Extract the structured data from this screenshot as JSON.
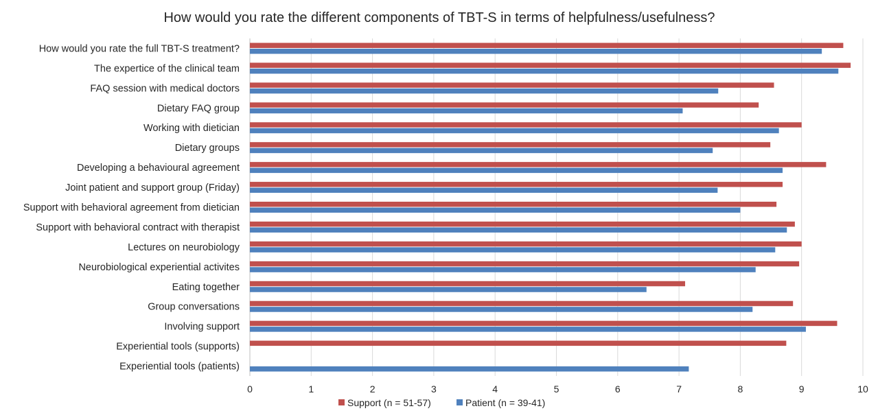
{
  "chart_data": {
    "type": "bar",
    "orientation": "horizontal",
    "title": "How would you rate the different components of TBT-S in terms of helpfulness/usefulness?",
    "xlabel": "",
    "ylabel": "",
    "xlim": [
      0,
      10
    ],
    "x_ticks": [
      0,
      1,
      2,
      3,
      4,
      5,
      6,
      7,
      8,
      9,
      10
    ],
    "grid": true,
    "legend_position": "bottom",
    "categories": [
      "How would you rate the full TBT-S treatment?",
      "The expertice of the clinical team",
      "FAQ session with medical doctors",
      "Dietary FAQ group",
      "Working with dietician",
      "Dietary groups",
      "Developing a behavioural agreement",
      "Joint patient and support group (Friday)",
      "Support with behavioral agreement from dietician",
      "Support with behavioral contract with therapist",
      "Lectures on neurobiology",
      "Neurobiological experiential activites",
      "Eating together",
      "Group conversations",
      "Involving support",
      "Experiential tools (supports)",
      "Experiential tools (patients)"
    ],
    "series": [
      {
        "name": "Support (n = 51-57)",
        "color": "#c0504d",
        "values": [
          9.68,
          9.8,
          8.55,
          8.3,
          9.0,
          8.49,
          9.4,
          8.69,
          8.59,
          8.89,
          9.0,
          8.96,
          7.1,
          8.86,
          9.58,
          8.75,
          null
        ]
      },
      {
        "name": "Patient (n = 39-41)",
        "color": "#4f81bd",
        "values": [
          9.33,
          9.6,
          7.64,
          7.06,
          8.63,
          7.55,
          8.69,
          7.63,
          8.0,
          8.76,
          8.57,
          8.25,
          6.47,
          8.2,
          9.07,
          null,
          7.16
        ]
      }
    ]
  }
}
